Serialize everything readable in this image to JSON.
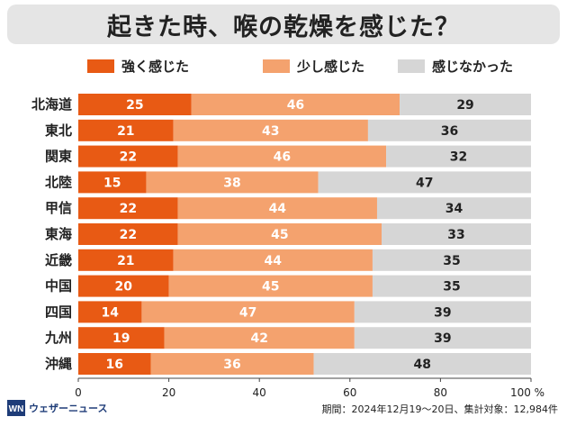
{
  "title": "起きた時、喉の乾燥を感じた？",
  "footer": {
    "brand": "ウェザーニュース",
    "note": "期間：2024年12月19〜20日、集計対象：12,984件"
  },
  "colors": {
    "strong": "#e85a14",
    "slight": "#f4a26e",
    "none": "#d6d6d6"
  },
  "chart_data": {
    "type": "bar",
    "orientation": "horizontal",
    "stacked": true,
    "categories": [
      "北海道",
      "東北",
      "関東",
      "北陸",
      "甲信",
      "東海",
      "近畿",
      "中国",
      "四国",
      "九州",
      "沖縄"
    ],
    "series": [
      {
        "name": "強く感じた",
        "color": "#e85a14",
        "values": [
          25,
          21,
          22,
          15,
          22,
          22,
          21,
          20,
          14,
          19,
          16
        ]
      },
      {
        "name": "少し感じた",
        "color": "#f4a26e",
        "values": [
          46,
          43,
          46,
          38,
          44,
          45,
          44,
          45,
          47,
          42,
          36
        ]
      },
      {
        "name": "感じなかった",
        "color": "#d6d6d6",
        "values": [
          29,
          36,
          32,
          47,
          34,
          33,
          35,
          35,
          39,
          39,
          48
        ]
      }
    ],
    "xlim": [
      0,
      100
    ],
    "xticks": [
      "0",
      "20",
      "40",
      "60",
      "80",
      "100 %"
    ],
    "legend_position": "top"
  }
}
